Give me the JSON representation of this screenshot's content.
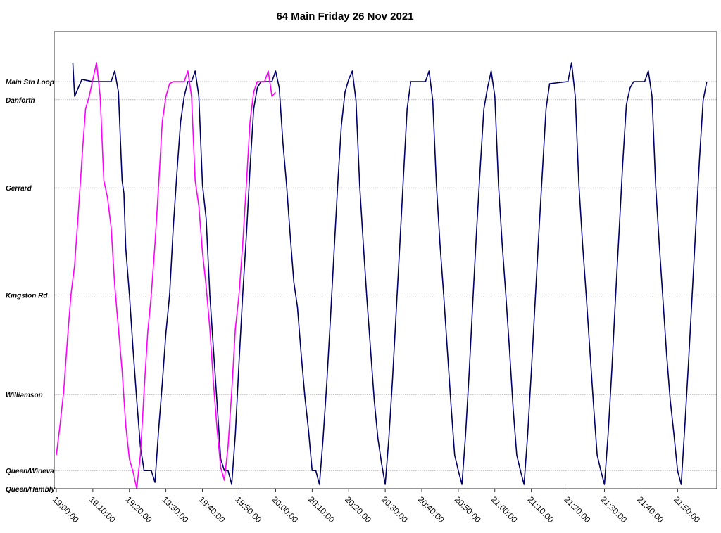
{
  "chart_data": {
    "type": "line",
    "title": "64 Main Friday 26 Nov 2021",
    "xlabel": "",
    "ylabel": "",
    "x_ticks": [
      "19:00:00",
      "19:10:00",
      "19:20:00",
      "19:30:00",
      "19:40:00",
      "19:50:00",
      "20:00:00",
      "20:10:00",
      "20:20:00",
      "20:30:00",
      "20:40:00",
      "20:50:00",
      "21:00:00",
      "21:10:00",
      "21:20:00",
      "21:30:00",
      "21:40:00",
      "21:50:00"
    ],
    "xlim": [
      "19:00:00",
      "21:58:00"
    ],
    "stops": [
      {
        "name": "Main Stn Loop",
        "pos": 0.965
      },
      {
        "name": "Danforth",
        "pos": 0.922
      },
      {
        "name": "Gerrard",
        "pos": 0.713
      },
      {
        "name": "Kingston Rd",
        "pos": 0.459
      },
      {
        "name": "Williamson",
        "pos": 0.223
      },
      {
        "name": "Queen/Wineva",
        "pos": 0.043
      },
      {
        "name": "Queen/Hambly",
        "pos": 0.0
      }
    ],
    "ylim": [
      0,
      1.0
    ],
    "grid": true,
    "legend": "none",
    "series": [
      {
        "color": "#000066",
        "points": [
          [
            "19:04:30",
            1.01
          ],
          [
            "19:05:00",
            0.93
          ],
          [
            "19:06:00",
            0.95
          ],
          [
            "19:07:00",
            0.97
          ],
          [
            "19:10:00",
            0.965
          ],
          [
            "19:15:00",
            0.965
          ],
          [
            "19:16:00",
            0.99
          ],
          [
            "19:17:00",
            0.94
          ],
          [
            "19:18:00",
            0.73
          ],
          [
            "19:18:30",
            0.7
          ],
          [
            "19:19:00",
            0.57
          ],
          [
            "19:20:00",
            0.46
          ],
          [
            "19:21:00",
            0.33
          ],
          [
            "19:22:00",
            0.21
          ],
          [
            "19:23:00",
            0.1
          ],
          [
            "19:24:00",
            0.043
          ],
          [
            "19:26:00",
            0.043
          ],
          [
            "19:27:00",
            0.015
          ],
          [
            "19:28:00",
            0.14
          ],
          [
            "19:29:00",
            0.25
          ],
          [
            "19:30:00",
            0.37
          ],
          [
            "19:31:00",
            0.46
          ],
          [
            "19:32:00",
            0.62
          ],
          [
            "19:33:00",
            0.75
          ],
          [
            "19:34:00",
            0.87
          ],
          [
            "19:35:00",
            0.93
          ],
          [
            "19:36:00",
            0.965
          ],
          [
            "19:37:00",
            0.965
          ],
          [
            "19:38:00",
            0.99
          ],
          [
            "19:39:00",
            0.93
          ],
          [
            "19:40:00",
            0.72
          ],
          [
            "19:41:00",
            0.64
          ],
          [
            "19:42:00",
            0.46
          ],
          [
            "19:43:00",
            0.33
          ],
          [
            "19:44:00",
            0.2
          ],
          [
            "19:45:00",
            0.07
          ],
          [
            "19:46:00",
            0.043
          ],
          [
            "19:47:00",
            0.043
          ],
          [
            "19:48:00",
            0.01
          ],
          [
            "19:49:00",
            0.13
          ],
          [
            "19:50:00",
            0.3
          ],
          [
            "19:51:00",
            0.46
          ],
          [
            "19:52:00",
            0.6
          ],
          [
            "19:53:00",
            0.76
          ],
          [
            "19:54:00",
            0.9
          ],
          [
            "19:55:00",
            0.95
          ],
          [
            "19:56:00",
            0.965
          ],
          [
            "19:59:00",
            0.965
          ],
          [
            "20:00:00",
            0.99
          ],
          [
            "20:01:00",
            0.95
          ],
          [
            "20:02:00",
            0.82
          ],
          [
            "20:03:00",
            0.72
          ],
          [
            "20:04:00",
            0.6
          ],
          [
            "20:05:00",
            0.49
          ],
          [
            "20:06:00",
            0.43
          ],
          [
            "20:07:00",
            0.32
          ],
          [
            "20:08:00",
            0.22
          ],
          [
            "20:09:00",
            0.14
          ],
          [
            "20:10:00",
            0.043
          ],
          [
            "20:11:00",
            0.043
          ],
          [
            "20:12:00",
            0.01
          ],
          [
            "20:13:00",
            0.12
          ],
          [
            "20:14:00",
            0.25
          ],
          [
            "20:15:00",
            0.4
          ],
          [
            "20:16:00",
            0.56
          ],
          [
            "20:17:00",
            0.72
          ],
          [
            "20:18:00",
            0.86
          ],
          [
            "20:19:00",
            0.94
          ],
          [
            "20:20:00",
            0.97
          ],
          [
            "20:21:00",
            0.99
          ],
          [
            "20:22:00",
            0.92
          ],
          [
            "20:23:00",
            0.72
          ],
          [
            "20:24:00",
            0.58
          ],
          [
            "20:25:00",
            0.45
          ],
          [
            "20:26:00",
            0.33
          ],
          [
            "20:27:00",
            0.21
          ],
          [
            "20:28:00",
            0.12
          ],
          [
            "20:29:00",
            0.06
          ],
          [
            "20:30:00",
            0.01
          ],
          [
            "20:31:00",
            0.12
          ],
          [
            "20:32:00",
            0.26
          ],
          [
            "20:33:00",
            0.42
          ],
          [
            "20:34:00",
            0.58
          ],
          [
            "20:35:00",
            0.74
          ],
          [
            "20:36:00",
            0.9
          ],
          [
            "20:37:00",
            0.965
          ],
          [
            "20:41:00",
            0.965
          ],
          [
            "20:42:00",
            0.99
          ],
          [
            "20:43:00",
            0.92
          ],
          [
            "20:44:00",
            0.72
          ],
          [
            "20:45:00",
            0.58
          ],
          [
            "20:46:00",
            0.46
          ],
          [
            "20:47:00",
            0.33
          ],
          [
            "20:48:00",
            0.2
          ],
          [
            "20:49:00",
            0.08
          ],
          [
            "20:50:00",
            0.043
          ],
          [
            "20:51:00",
            0.01
          ],
          [
            "20:52:00",
            0.13
          ],
          [
            "20:53:00",
            0.28
          ],
          [
            "20:54:00",
            0.45
          ],
          [
            "20:55:00",
            0.61
          ],
          [
            "20:56:00",
            0.76
          ],
          [
            "20:57:00",
            0.9
          ],
          [
            "20:58:00",
            0.95
          ],
          [
            "20:59:00",
            0.99
          ],
          [
            "21:00:00",
            0.93
          ],
          [
            "21:01:00",
            0.72
          ],
          [
            "21:02:00",
            0.58
          ],
          [
            "21:03:00",
            0.46
          ],
          [
            "21:04:00",
            0.33
          ],
          [
            "21:05:00",
            0.19
          ],
          [
            "21:06:00",
            0.08
          ],
          [
            "21:07:00",
            0.043
          ],
          [
            "21:08:00",
            0.01
          ],
          [
            "21:09:00",
            0.13
          ],
          [
            "21:10:00",
            0.28
          ],
          [
            "21:11:00",
            0.44
          ],
          [
            "21:12:00",
            0.6
          ],
          [
            "21:13:00",
            0.75
          ],
          [
            "21:14:00",
            0.9
          ],
          [
            "21:15:00",
            0.96
          ],
          [
            "21:20:00",
            0.965
          ],
          [
            "21:21:00",
            1.01
          ],
          [
            "21:22:00",
            0.93
          ],
          [
            "21:23:00",
            0.72
          ],
          [
            "21:24:00",
            0.58
          ],
          [
            "21:25:00",
            0.46
          ],
          [
            "21:26:00",
            0.33
          ],
          [
            "21:27:00",
            0.2
          ],
          [
            "21:28:00",
            0.08
          ],
          [
            "21:29:00",
            0.043
          ],
          [
            "21:30:00",
            0.01
          ],
          [
            "21:31:00",
            0.13
          ],
          [
            "21:32:00",
            0.28
          ],
          [
            "21:33:00",
            0.45
          ],
          [
            "21:34:00",
            0.61
          ],
          [
            "21:35:00",
            0.77
          ],
          [
            "21:36:00",
            0.91
          ],
          [
            "21:37:00",
            0.95
          ],
          [
            "21:38:00",
            0.965
          ],
          [
            "21:41:00",
            0.965
          ],
          [
            "21:42:00",
            0.99
          ],
          [
            "21:43:00",
            0.93
          ],
          [
            "21:44:00",
            0.72
          ],
          [
            "21:45:00",
            0.58
          ],
          [
            "21:46:00",
            0.45
          ],
          [
            "21:47:00",
            0.32
          ],
          [
            "21:48:00",
            0.21
          ],
          [
            "21:49:00",
            0.13
          ],
          [
            "21:50:00",
            0.043
          ],
          [
            "21:51:00",
            0.01
          ],
          [
            "21:52:00",
            0.15
          ],
          [
            "21:53:00",
            0.3
          ],
          [
            "21:54:00",
            0.46
          ],
          [
            "21:55:00",
            0.62
          ],
          [
            "21:56:00",
            0.78
          ],
          [
            "21:57:00",
            0.92
          ],
          [
            "21:58:00",
            0.965
          ]
        ]
      },
      {
        "color": "#ff00ff",
        "points": [
          [
            "19:00:00",
            0.08
          ],
          [
            "19:01:00",
            0.15
          ],
          [
            "19:02:00",
            0.23
          ],
          [
            "19:03:00",
            0.35
          ],
          [
            "19:04:00",
            0.46
          ],
          [
            "19:05:00",
            0.53
          ],
          [
            "19:06:00",
            0.65
          ],
          [
            "19:07:00",
            0.78
          ],
          [
            "19:08:00",
            0.9
          ],
          [
            "19:09:00",
            0.93
          ],
          [
            "19:10:00",
            0.97
          ],
          [
            "19:11:00",
            1.01
          ],
          [
            "19:12:00",
            0.93
          ],
          [
            "19:13:00",
            0.73
          ],
          [
            "19:14:00",
            0.69
          ],
          [
            "19:15:00",
            0.62
          ],
          [
            "19:16:00",
            0.48
          ],
          [
            "19:17:00",
            0.38
          ],
          [
            "19:18:00",
            0.28
          ],
          [
            "19:19:00",
            0.15
          ],
          [
            "19:20:00",
            0.07
          ],
          [
            "19:21:00",
            0.04
          ],
          [
            "19:22:00",
            0.0
          ],
          [
            "19:23:00",
            0.08
          ],
          [
            "19:24:00",
            0.23
          ],
          [
            "19:25:00",
            0.37
          ],
          [
            "19:26:00",
            0.46
          ],
          [
            "19:27:00",
            0.58
          ],
          [
            "19:28:00",
            0.72
          ],
          [
            "19:29:00",
            0.87
          ],
          [
            "19:30:00",
            0.93
          ],
          [
            "19:31:00",
            0.96
          ],
          [
            "19:32:00",
            0.965
          ],
          [
            "19:35:00",
            0.965
          ],
          [
            "19:36:00",
            0.99
          ],
          [
            "19:37:00",
            0.93
          ],
          [
            "19:38:00",
            0.73
          ],
          [
            "19:39:00",
            0.67
          ],
          [
            "19:40:00",
            0.56
          ],
          [
            "19:41:00",
            0.48
          ],
          [
            "19:42:00",
            0.38
          ],
          [
            "19:43:00",
            0.25
          ],
          [
            "19:44:00",
            0.14
          ],
          [
            "19:45:00",
            0.05
          ],
          [
            "19:46:00",
            0.02
          ],
          [
            "19:47:00",
            0.1
          ],
          [
            "19:48:00",
            0.23
          ],
          [
            "19:49:00",
            0.38
          ],
          [
            "19:50:00",
            0.46
          ],
          [
            "19:51:00",
            0.58
          ],
          [
            "19:52:00",
            0.72
          ],
          [
            "19:53:00",
            0.87
          ],
          [
            "19:54:00",
            0.94
          ],
          [
            "19:55:00",
            0.965
          ],
          [
            "19:57:00",
            0.965
          ],
          [
            "19:58:00",
            0.99
          ],
          [
            "19:59:00",
            0.93
          ],
          [
            "20:00:00",
            0.94
          ]
        ]
      }
    ]
  }
}
